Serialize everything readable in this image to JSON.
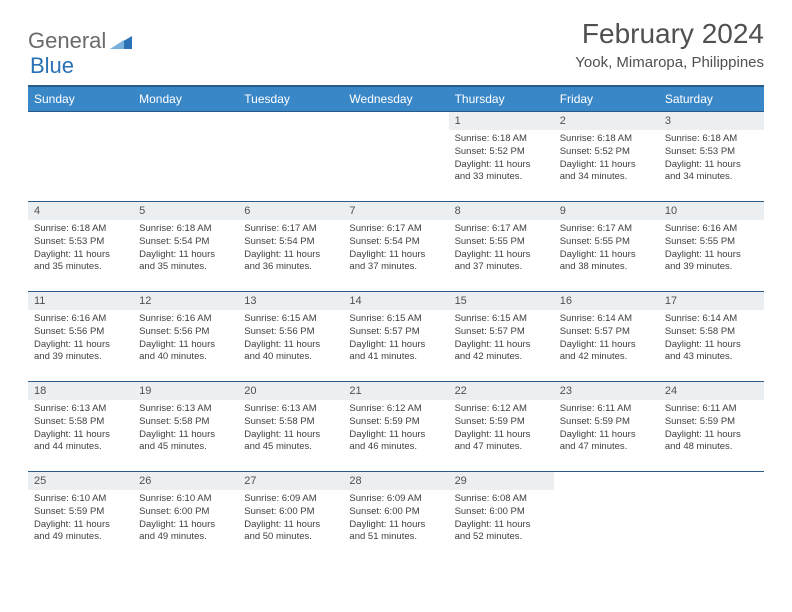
{
  "logo": {
    "general": "General",
    "blue": "Blue"
  },
  "title": "February 2024",
  "location": "Yook, Mimaropa, Philippines",
  "colors": {
    "header_bg": "#3a87c8",
    "header_border": "#2a5a8a",
    "daynum_bg": "#eceff2",
    "text": "#505050",
    "logo_gray": "#6b6b6b",
    "logo_blue": "#2a72b5"
  },
  "day_headers": [
    "Sunday",
    "Monday",
    "Tuesday",
    "Wednesday",
    "Thursday",
    "Friday",
    "Saturday"
  ],
  "weeks": [
    [
      null,
      null,
      null,
      null,
      {
        "d": "1",
        "sr": "6:18 AM",
        "ss": "5:52 PM",
        "dl": "11 hours and 33 minutes."
      },
      {
        "d": "2",
        "sr": "6:18 AM",
        "ss": "5:52 PM",
        "dl": "11 hours and 34 minutes."
      },
      {
        "d": "3",
        "sr": "6:18 AM",
        "ss": "5:53 PM",
        "dl": "11 hours and 34 minutes."
      }
    ],
    [
      {
        "d": "4",
        "sr": "6:18 AM",
        "ss": "5:53 PM",
        "dl": "11 hours and 35 minutes."
      },
      {
        "d": "5",
        "sr": "6:18 AM",
        "ss": "5:54 PM",
        "dl": "11 hours and 35 minutes."
      },
      {
        "d": "6",
        "sr": "6:17 AM",
        "ss": "5:54 PM",
        "dl": "11 hours and 36 minutes."
      },
      {
        "d": "7",
        "sr": "6:17 AM",
        "ss": "5:54 PM",
        "dl": "11 hours and 37 minutes."
      },
      {
        "d": "8",
        "sr": "6:17 AM",
        "ss": "5:55 PM",
        "dl": "11 hours and 37 minutes."
      },
      {
        "d": "9",
        "sr": "6:17 AM",
        "ss": "5:55 PM",
        "dl": "11 hours and 38 minutes."
      },
      {
        "d": "10",
        "sr": "6:16 AM",
        "ss": "5:55 PM",
        "dl": "11 hours and 39 minutes."
      }
    ],
    [
      {
        "d": "11",
        "sr": "6:16 AM",
        "ss": "5:56 PM",
        "dl": "11 hours and 39 minutes."
      },
      {
        "d": "12",
        "sr": "6:16 AM",
        "ss": "5:56 PM",
        "dl": "11 hours and 40 minutes."
      },
      {
        "d": "13",
        "sr": "6:15 AM",
        "ss": "5:56 PM",
        "dl": "11 hours and 40 minutes."
      },
      {
        "d": "14",
        "sr": "6:15 AM",
        "ss": "5:57 PM",
        "dl": "11 hours and 41 minutes."
      },
      {
        "d": "15",
        "sr": "6:15 AM",
        "ss": "5:57 PM",
        "dl": "11 hours and 42 minutes."
      },
      {
        "d": "16",
        "sr": "6:14 AM",
        "ss": "5:57 PM",
        "dl": "11 hours and 42 minutes."
      },
      {
        "d": "17",
        "sr": "6:14 AM",
        "ss": "5:58 PM",
        "dl": "11 hours and 43 minutes."
      }
    ],
    [
      {
        "d": "18",
        "sr": "6:13 AM",
        "ss": "5:58 PM",
        "dl": "11 hours and 44 minutes."
      },
      {
        "d": "19",
        "sr": "6:13 AM",
        "ss": "5:58 PM",
        "dl": "11 hours and 45 minutes."
      },
      {
        "d": "20",
        "sr": "6:13 AM",
        "ss": "5:58 PM",
        "dl": "11 hours and 45 minutes."
      },
      {
        "d": "21",
        "sr": "6:12 AM",
        "ss": "5:59 PM",
        "dl": "11 hours and 46 minutes."
      },
      {
        "d": "22",
        "sr": "6:12 AM",
        "ss": "5:59 PM",
        "dl": "11 hours and 47 minutes."
      },
      {
        "d": "23",
        "sr": "6:11 AM",
        "ss": "5:59 PM",
        "dl": "11 hours and 47 minutes."
      },
      {
        "d": "24",
        "sr": "6:11 AM",
        "ss": "5:59 PM",
        "dl": "11 hours and 48 minutes."
      }
    ],
    [
      {
        "d": "25",
        "sr": "6:10 AM",
        "ss": "5:59 PM",
        "dl": "11 hours and 49 minutes."
      },
      {
        "d": "26",
        "sr": "6:10 AM",
        "ss": "6:00 PM",
        "dl": "11 hours and 49 minutes."
      },
      {
        "d": "27",
        "sr": "6:09 AM",
        "ss": "6:00 PM",
        "dl": "11 hours and 50 minutes."
      },
      {
        "d": "28",
        "sr": "6:09 AM",
        "ss": "6:00 PM",
        "dl": "11 hours and 51 minutes."
      },
      {
        "d": "29",
        "sr": "6:08 AM",
        "ss": "6:00 PM",
        "dl": "11 hours and 52 minutes."
      },
      null,
      null
    ]
  ],
  "labels": {
    "sunrise": "Sunrise:",
    "sunset": "Sunset:",
    "daylight": "Daylight:"
  }
}
